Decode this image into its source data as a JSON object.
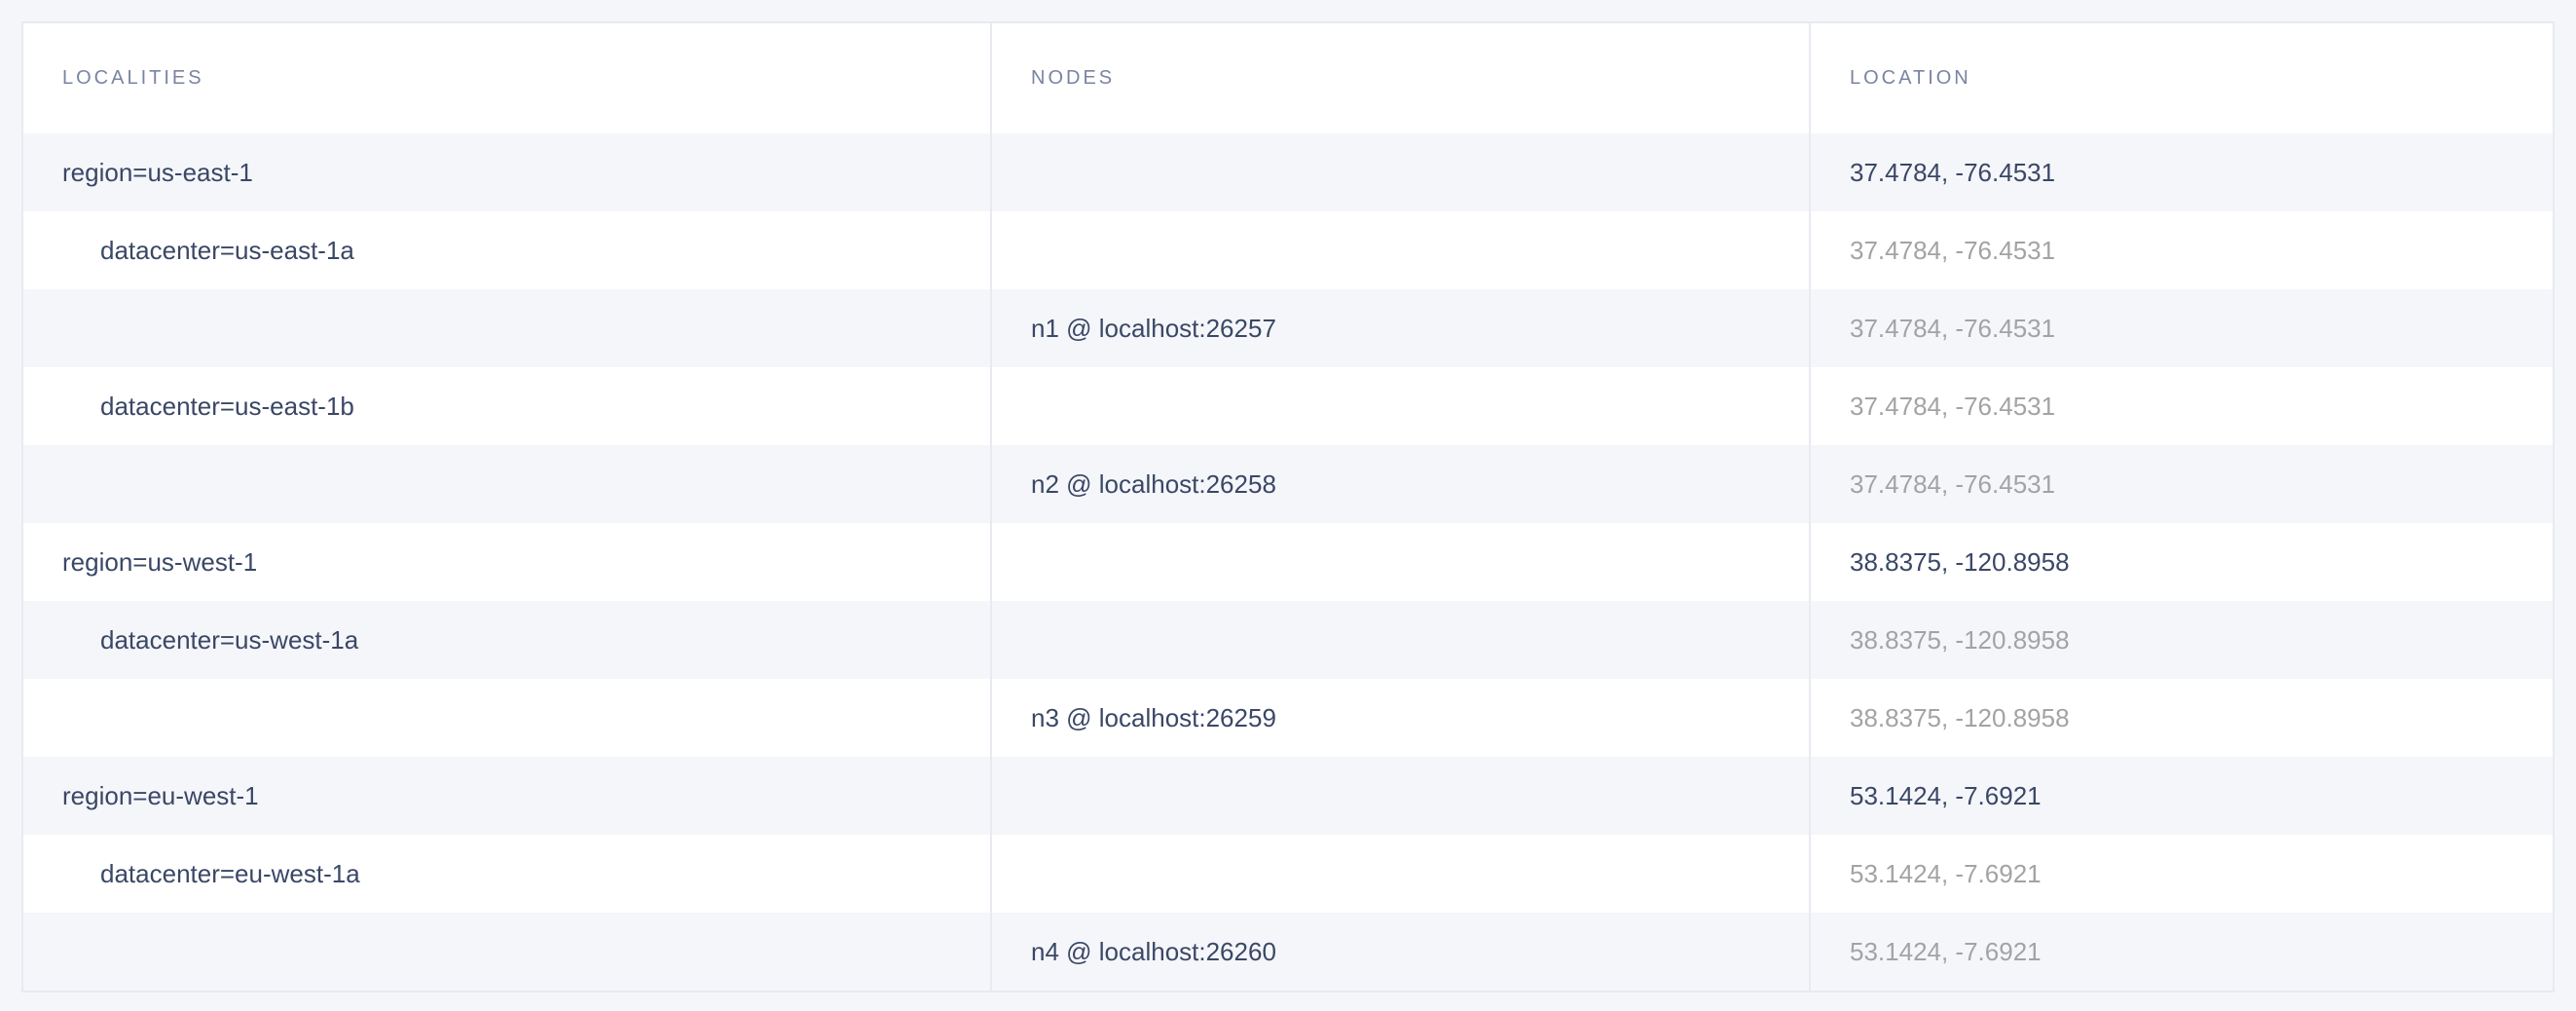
{
  "columns": [
    "LOCALITIES",
    "NODES",
    "LOCATION"
  ],
  "rows": [
    {
      "locality": "region=us-east-1",
      "node": "",
      "location": "37.4784, -76.4531",
      "level": 0
    },
    {
      "locality": "datacenter=us-east-1a",
      "node": "",
      "location": "37.4784, -76.4531",
      "level": 1
    },
    {
      "locality": "",
      "node": "n1 @ localhost:26257",
      "location": "37.4784, -76.4531",
      "level": 2
    },
    {
      "locality": "datacenter=us-east-1b",
      "node": "",
      "location": "37.4784, -76.4531",
      "level": 1
    },
    {
      "locality": "",
      "node": "n2 @ localhost:26258",
      "location": "37.4784, -76.4531",
      "level": 2
    },
    {
      "locality": "region=us-west-1",
      "node": "",
      "location": "38.8375, -120.8958",
      "level": 0
    },
    {
      "locality": "datacenter=us-west-1a",
      "node": "",
      "location": "38.8375, -120.8958",
      "level": 1
    },
    {
      "locality": "",
      "node": "n3 @ localhost:26259",
      "location": "38.8375, -120.8958",
      "level": 2
    },
    {
      "locality": "region=eu-west-1",
      "node": "",
      "location": "53.1424, -7.6921",
      "level": 0
    },
    {
      "locality": "datacenter=eu-west-1a",
      "node": "",
      "location": "53.1424, -7.6921",
      "level": 1
    },
    {
      "locality": "",
      "node": "n4 @ localhost:26260",
      "location": "53.1424, -7.6921",
      "level": 2
    }
  ],
  "colors": {
    "background": "#f5f6fa",
    "text": "#3a4766",
    "muted": "#a3a3a6",
    "header": "#7a84a1"
  }
}
